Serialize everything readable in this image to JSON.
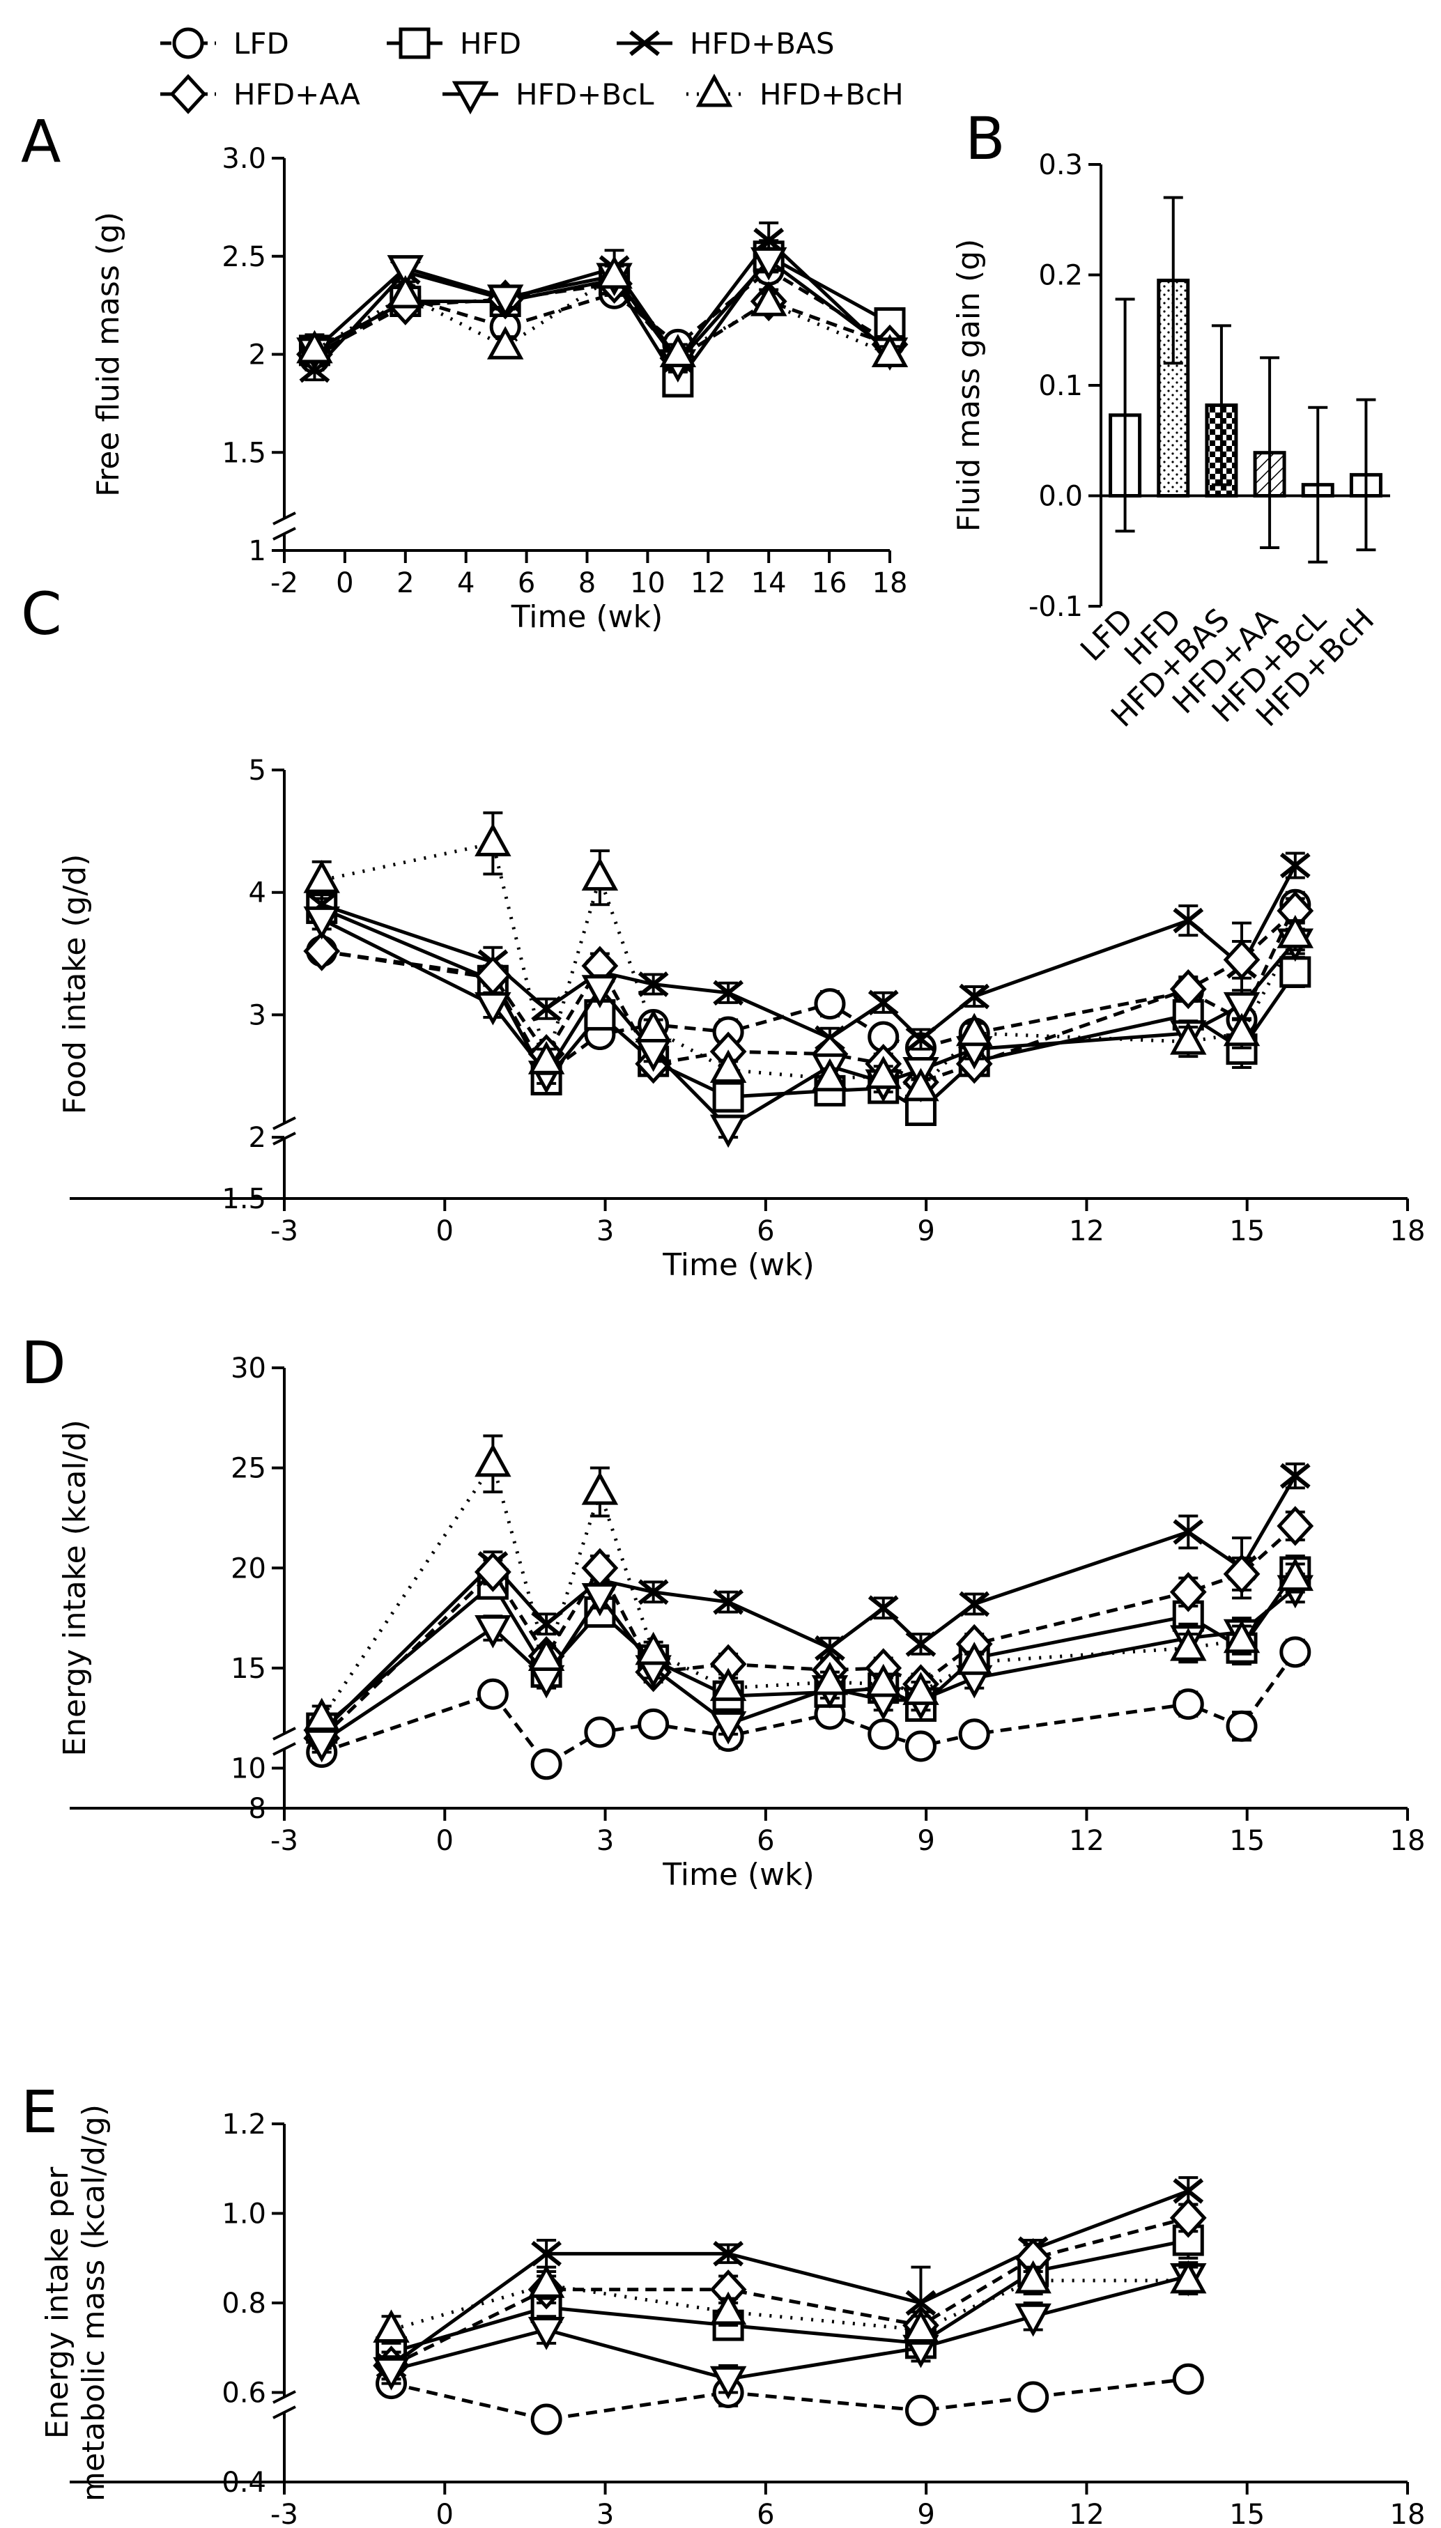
{
  "legend": [
    {
      "label": "LFD",
      "marker": "circle",
      "dash": "dashed"
    },
    {
      "label": "HFD",
      "marker": "square",
      "dash": "solid"
    },
    {
      "label": "HFD+BAS",
      "marker": "x",
      "dash": "solid"
    },
    {
      "label": "HFD+AA",
      "marker": "diamond",
      "dash": "dashed"
    },
    {
      "label": "HFD+BcL",
      "marker": "tri-down",
      "dash": "solid"
    },
    {
      "label": "HFD+BcH",
      "marker": "tri-up",
      "dash": "dotted"
    }
  ],
  "chart_data": [
    {
      "panel": "A",
      "type": "line",
      "xlabel": "Time (wk)",
      "ylabel": "Free fluid mass (g)",
      "xlim": [
        -2,
        18
      ],
      "xticks": [
        "-2",
        "0",
        "2",
        "4",
        "6",
        "8",
        "10",
        "12",
        "14",
        "16",
        "18"
      ],
      "ylim": [
        1,
        3
      ],
      "yticks": [
        "1",
        "1.5",
        "2",
        "2.5",
        "3.0"
      ],
      "axis_break": true,
      "x": [
        -1,
        2,
        5.3,
        8.9,
        11,
        14,
        18
      ],
      "series": [
        {
          "name": "LFD",
          "values": [
            1.98,
            2.29,
            2.14,
            2.31,
            2.05,
            2.43,
            2.06
          ],
          "err": [
            0.06,
            0.05,
            0.06,
            0.05,
            0.04,
            0.06,
            0.04
          ]
        },
        {
          "name": "HFD",
          "values": [
            2.02,
            2.27,
            2.27,
            2.38,
            1.86,
            2.5,
            2.16
          ],
          "err": [
            0.08,
            0.07,
            0.05,
            0.07,
            0.05,
            0.08,
            0.05
          ]
        },
        {
          "name": "HFD+BAS",
          "values": [
            1.92,
            2.42,
            2.28,
            2.44,
            1.97,
            2.58,
            2.0
          ],
          "err": [
            0.05,
            0.05,
            0.05,
            0.09,
            0.05,
            0.09,
            0.04
          ]
        },
        {
          "name": "HFD+AA",
          "values": [
            2.0,
            2.25,
            2.28,
            2.36,
            1.98,
            2.27,
            2.05
          ],
          "err": [
            0.05,
            0.05,
            0.04,
            0.06,
            0.05,
            0.06,
            0.04
          ]
        },
        {
          "name": "HFD+BcL",
          "values": [
            2.02,
            2.44,
            2.29,
            2.4,
            1.96,
            2.48,
            2.02
          ],
          "err": [
            0.06,
            0.04,
            0.05,
            0.05,
            0.05,
            0.06,
            0.04
          ]
        },
        {
          "name": "HFD+BcH",
          "values": [
            2.02,
            2.3,
            2.04,
            2.4,
            2.0,
            2.26,
            2.0
          ],
          "err": [
            0.06,
            0.05,
            0.05,
            0.05,
            0.05,
            0.05,
            0.04
          ]
        }
      ]
    },
    {
      "panel": "B",
      "type": "bar",
      "ylabel": "Fluid mass gain (g)",
      "ylim": [
        -0.1,
        0.3
      ],
      "yticks": [
        "-0.1",
        "0.0",
        "0.1",
        "0.2",
        "0.3"
      ],
      "categories": [
        "LFD",
        "HFD",
        "HFD+BAS",
        "HFD+AA",
        "HFD+BcL",
        "HFD+BcH"
      ],
      "values": [
        0.073,
        0.195,
        0.082,
        0.039,
        0.01,
        0.019
      ],
      "err": [
        0.105,
        0.075,
        0.072,
        0.086,
        0.07,
        0.068
      ],
      "patterns": [
        "none",
        "dots",
        "checker",
        "hatch",
        "none",
        "none"
      ]
    },
    {
      "panel": "C",
      "type": "line",
      "xlabel": "Time (wk)",
      "ylabel": "Food intake (g/d)",
      "xlim": [
        -3,
        18
      ],
      "xticks": [
        "-3",
        "0",
        "3",
        "6",
        "9",
        "12",
        "15",
        "18"
      ],
      "ylim": [
        1.5,
        5
      ],
      "yticks": [
        "1.5",
        "2",
        "3",
        "4",
        "5"
      ],
      "axis_break": true,
      "x": [
        -2.3,
        0.9,
        1.9,
        2.9,
        3.9,
        5.3,
        7.2,
        8.2,
        8.9,
        9.9,
        13.9,
        14.9,
        15.9
      ],
      "series": [
        {
          "name": "LFD",
          "values": [
            3.52,
            3.3,
            2.52,
            2.84,
            2.92,
            2.86,
            3.09,
            2.82,
            2.73,
            2.85,
            3.19,
            2.96,
            3.9
          ],
          "err": [
            0.06,
            0.08,
            0.08,
            0.08,
            0.08,
            0.1,
            0.1,
            0.08,
            0.08,
            0.08,
            0.1,
            0.1,
            0.1
          ]
        },
        {
          "name": "HFD",
          "values": [
            3.87,
            3.28,
            2.47,
            3.0,
            2.62,
            2.33,
            2.38,
            2.4,
            2.22,
            2.62,
            3.0,
            2.72,
            3.35
          ],
          "err": [
            0.1,
            0.1,
            0.08,
            0.1,
            0.08,
            0.1,
            0.08,
            0.08,
            0.08,
            0.1,
            0.12,
            0.15,
            0.12
          ]
        },
        {
          "name": "HFD+BAS",
          "values": [
            3.9,
            3.43,
            3.05,
            3.35,
            3.25,
            3.18,
            2.81,
            3.1,
            2.8,
            3.15,
            3.77,
            3.4,
            4.22
          ],
          "err": [
            0.1,
            0.12,
            0.08,
            0.1,
            0.08,
            0.08,
            0.08,
            0.08,
            0.08,
            0.08,
            0.12,
            0.35,
            0.1
          ]
        },
        {
          "name": "HFD+AA",
          "values": [
            3.52,
            3.32,
            2.68,
            3.4,
            2.6,
            2.7,
            2.68,
            2.6,
            2.45,
            2.6,
            3.21,
            3.45,
            3.85
          ],
          "err": [
            0.08,
            0.08,
            0.08,
            0.1,
            0.08,
            0.08,
            0.08,
            0.08,
            0.08,
            0.08,
            0.1,
            0.15,
            0.1
          ]
        },
        {
          "name": "HFD+BcL",
          "values": [
            3.78,
            3.08,
            2.52,
            3.22,
            2.7,
            2.08,
            2.58,
            2.45,
            2.55,
            2.72,
            2.85,
            3.08,
            3.6
          ],
          "err": [
            0.08,
            0.1,
            0.08,
            0.1,
            0.08,
            0.08,
            0.08,
            0.08,
            0.08,
            0.08,
            0.1,
            0.12,
            0.1
          ]
        },
        {
          "name": "HFD+BcH",
          "values": [
            4.1,
            4.4,
            2.62,
            4.12,
            2.88,
            2.55,
            2.48,
            2.5,
            2.4,
            2.85,
            2.78,
            2.85,
            3.65
          ],
          "err": [
            0.15,
            0.25,
            0.1,
            0.22,
            0.08,
            0.08,
            0.08,
            0.08,
            0.08,
            0.08,
            0.12,
            0.12,
            0.12
          ]
        }
      ]
    },
    {
      "panel": "D",
      "type": "line",
      "xlabel": "Time (wk)",
      "ylabel": "Energy intake (kcal/d)",
      "xlim": [
        -3,
        18
      ],
      "xticks": [
        "-3",
        "0",
        "3",
        "6",
        "9",
        "12",
        "15",
        "18"
      ],
      "ylim": [
        8,
        30
      ],
      "yticks": [
        "8",
        "10",
        "15",
        "20",
        "25",
        "30"
      ],
      "axis_break": true,
      "x": [
        -2.3,
        0.9,
        1.9,
        2.9,
        3.9,
        5.3,
        7.2,
        8.2,
        8.9,
        9.9,
        13.9,
        14.9,
        15.9
      ],
      "series": [
        {
          "name": "LFD",
          "values": [
            10.8,
            13.7,
            10.2,
            11.8,
            12.2,
            11.6,
            12.7,
            11.7,
            11.1,
            11.7,
            13.2,
            12.1,
            15.8
          ],
          "err": [
            0.3,
            0.4,
            0.3,
            0.3,
            0.3,
            0.6,
            0.4,
            0.3,
            0.3,
            0.3,
            0.6,
            0.7,
            0.6
          ]
        },
        {
          "name": "HFD",
          "values": [
            12.0,
            19.2,
            14.8,
            17.8,
            15.4,
            13.6,
            13.8,
            14.0,
            13.1,
            15.5,
            17.6,
            16.0,
            19.8
          ],
          "err": [
            0.5,
            0.6,
            0.5,
            0.6,
            0.5,
            0.6,
            0.5,
            0.5,
            0.5,
            0.5,
            0.8,
            0.8,
            0.8
          ]
        },
        {
          "name": "HFD+BAS",
          "values": [
            11.8,
            20.2,
            17.2,
            19.4,
            18.8,
            18.3,
            16.0,
            18.0,
            16.2,
            18.2,
            21.8,
            20.0,
            24.6
          ],
          "err": [
            0.5,
            0.6,
            0.5,
            0.6,
            0.5,
            0.5,
            0.5,
            0.5,
            0.5,
            0.5,
            0.8,
            1.5,
            0.6
          ]
        },
        {
          "name": "HFD+AA",
          "values": [
            11.5,
            19.8,
            15.6,
            20.0,
            14.8,
            15.2,
            14.9,
            15.0,
            14.2,
            16.2,
            18.8,
            19.7,
            22.1
          ],
          "err": [
            0.5,
            0.6,
            0.5,
            0.6,
            0.5,
            0.5,
            0.5,
            0.5,
            0.5,
            0.5,
            0.7,
            0.8,
            0.7
          ]
        },
        {
          "name": "HFD+BcL",
          "values": [
            11.3,
            17.0,
            14.5,
            18.6,
            15.0,
            12.2,
            14.0,
            13.4,
            13.4,
            14.5,
            16.5,
            16.8,
            19.0
          ],
          "err": [
            0.5,
            0.6,
            0.5,
            0.6,
            0.5,
            0.5,
            0.5,
            0.5,
            0.5,
            0.5,
            0.7,
            0.7,
            0.7
          ]
        },
        {
          "name": "HFD+BcH",
          "values": [
            12.5,
            25.2,
            15.5,
            23.8,
            15.8,
            14.0,
            14.3,
            14.2,
            13.8,
            15.3,
            16.0,
            16.4,
            19.5
          ],
          "err": [
            0.6,
            1.4,
            0.5,
            1.2,
            0.5,
            0.5,
            0.5,
            0.5,
            0.5,
            0.5,
            0.7,
            0.7,
            0.7
          ]
        }
      ]
    },
    {
      "panel": "E",
      "type": "line",
      "xlabel": "Time (wk)",
      "ylabel": "Energy intake per metabolic mass (kcal/d/g)",
      "ylabel_lines": [
        "Energy intake per",
        "metabolic mass (kcal/d/g)"
      ],
      "xlim": [
        -3,
        18
      ],
      "xticks": [
        "-3",
        "0",
        "3",
        "6",
        "9",
        "12",
        "15",
        "18"
      ],
      "ylim": [
        0.4,
        1.2
      ],
      "yticks": [
        "0.4",
        "0.6",
        "0.8",
        "1.0",
        "1.2"
      ],
      "axis_break": true,
      "x": [
        -1,
        1.9,
        5.3,
        8.9,
        11,
        13.9
      ],
      "series": [
        {
          "name": "LFD",
          "values": [
            0.62,
            0.54,
            0.6,
            0.56,
            0.59,
            0.63
          ],
          "err": [
            0.02,
            0.02,
            0.03,
            0.02,
            0.02,
            0.02
          ]
        },
        {
          "name": "HFD",
          "values": [
            0.69,
            0.79,
            0.75,
            0.71,
            0.87,
            0.94
          ],
          "err": [
            0.03,
            0.03,
            0.03,
            0.03,
            0.03,
            0.04
          ]
        },
        {
          "name": "HFD+BAS",
          "values": [
            0.66,
            0.91,
            0.91,
            0.8,
            0.92,
            1.05
          ],
          "err": [
            0.03,
            0.03,
            0.02,
            0.08,
            0.02,
            0.03
          ]
        },
        {
          "name": "HFD+AA",
          "values": [
            0.66,
            0.83,
            0.83,
            0.75,
            0.9,
            0.99
          ],
          "err": [
            0.03,
            0.03,
            0.03,
            0.03,
            0.03,
            0.03
          ]
        },
        {
          "name": "HFD+BcL",
          "values": [
            0.65,
            0.74,
            0.63,
            0.7,
            0.77,
            0.86
          ],
          "err": [
            0.03,
            0.03,
            0.03,
            0.03,
            0.03,
            0.03
          ]
        },
        {
          "name": "HFD+BcH",
          "values": [
            0.74,
            0.84,
            0.78,
            0.74,
            0.85,
            0.85
          ],
          "err": [
            0.03,
            0.03,
            0.03,
            0.03,
            0.03,
            0.03
          ]
        }
      ]
    }
  ]
}
